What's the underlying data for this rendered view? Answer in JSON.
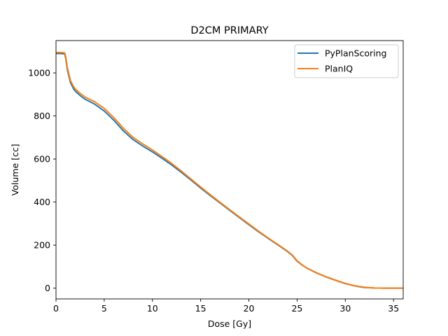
{
  "chart_data": {
    "type": "line",
    "title": "D2CM PRIMARY",
    "xlabel": "Dose [Gy]",
    "ylabel": "Volume [cc]",
    "xlim": [
      0,
      36
    ],
    "ylim": [
      -50,
      1150
    ],
    "xticks": [
      0,
      5,
      10,
      15,
      20,
      25,
      30,
      35
    ],
    "yticks": [
      0,
      200,
      400,
      600,
      800,
      1000
    ],
    "grid": false,
    "legend_position": "top-right",
    "series": [
      {
        "name": "PyPlanScoring",
        "color": "#1f77b4",
        "x": [
          0,
          0.5,
          0.9,
          1.0,
          1.2,
          1.5,
          1.8,
          2.0,
          2.5,
          3.0,
          4.0,
          5.0,
          6.0,
          7.0,
          8.0,
          9.0,
          10.0,
          11.0,
          12.0,
          13.0,
          14.0,
          15.0,
          16.0,
          17.0,
          18.0,
          19.0,
          20.0,
          21.0,
          22.0,
          23.0,
          24.0,
          24.5,
          25.0,
          25.5,
          26.0,
          27.0,
          28.0,
          29.0,
          30.0,
          31.0,
          32.0,
          33.0,
          34.0,
          35.0,
          36.0
        ],
        "y": [
          1090,
          1090,
          1088,
          1070,
          1010,
          955,
          928,
          915,
          895,
          878,
          855,
          823,
          780,
          730,
          690,
          660,
          633,
          603,
          572,
          538,
          502,
          465,
          430,
          396,
          362,
          328,
          295,
          262,
          231,
          201,
          170,
          152,
          125,
          108,
          93,
          71,
          52,
          36,
          21,
          10,
          3,
          1,
          0,
          0,
          0
        ]
      },
      {
        "name": "PlanIQ",
        "color": "#ff7f0e",
        "x": [
          0,
          0.5,
          0.9,
          1.0,
          1.2,
          1.5,
          1.8,
          2.0,
          2.5,
          3.0,
          4.0,
          5.0,
          6.0,
          7.0,
          8.0,
          9.0,
          10.0,
          11.0,
          12.0,
          13.0,
          14.0,
          15.0,
          16.0,
          17.0,
          18.0,
          19.0,
          20.0,
          21.0,
          22.0,
          23.0,
          24.0,
          24.5,
          25.0,
          25.5,
          26.0,
          27.0,
          28.0,
          29.0,
          30.0,
          31.0,
          32.0,
          33.0,
          34.0,
          35.0,
          36.0
        ],
        "y": [
          1095,
          1095,
          1093,
          1078,
          1020,
          965,
          938,
          925,
          905,
          888,
          866,
          835,
          792,
          742,
          700,
          670,
          642,
          611,
          579,
          544,
          507,
          470,
          434,
          399,
          365,
          331,
          298,
          265,
          233,
          203,
          172,
          154,
          127,
          109,
          94,
          72,
          53,
          37,
          22,
          11,
          4,
          1,
          0,
          0,
          0
        ]
      }
    ]
  }
}
